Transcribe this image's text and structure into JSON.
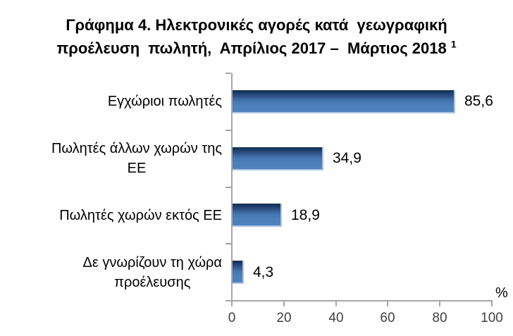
{
  "title": {
    "line1": "Γράφημα 4. Ηλεκτρονικές αγορές κατά  γεωγραφική",
    "line2": "προέλευση  πωλητή,  Απρίλιος 2017 –  Μάρτιος 2018 ",
    "footnote_marker": "1"
  },
  "chart_data": {
    "type": "bar",
    "orientation": "horizontal",
    "categories": [
      "Εγχώριοι πωλητές",
      "Πωλητές άλλων χωρών της ΕΕ",
      "Πωλητές χωρών εκτός ΕΕ",
      "Δε γνωρίζουν τη χώρα προέλευσης"
    ],
    "category_lines": [
      [
        "Εγχώριοι πωλητές"
      ],
      [
        "Πωλητές άλλων χωρών της",
        "ΕΕ"
      ],
      [
        "Πωλητές χωρών εκτός ΕΕ"
      ],
      [
        "Δε γνωρίζουν τη χώρα",
        "προέλευσης"
      ]
    ],
    "values": [
      85.6,
      34.9,
      18.9,
      4.3
    ],
    "value_labels": [
      "85,6",
      "34,9",
      "18,9",
      "4,3"
    ],
    "xlim": [
      0,
      100
    ],
    "x_ticks": [
      0,
      20,
      40,
      60,
      80,
      100
    ],
    "x_tick_labels": [
      "0",
      "20",
      "40",
      "60",
      "80",
      "100"
    ],
    "axis_unit_label": "%",
    "grid": false,
    "legend": false,
    "colors": {
      "bar_gradient_top": "#17375E",
      "bar_gradient_bottom": "#4F81BD",
      "bar_edge": "#A9C4E4",
      "axis": "#A6A6A6",
      "tick_label": "#404040",
      "text": "#000000"
    }
  }
}
